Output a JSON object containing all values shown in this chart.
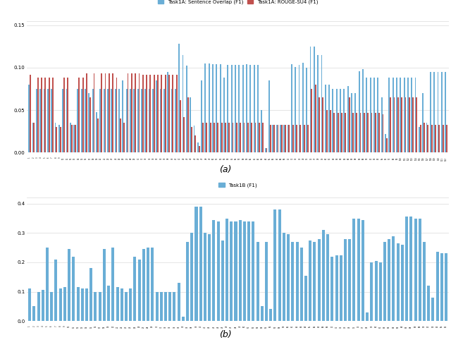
{
  "task1a_blue": [
    0.08,
    0.035,
    0.075,
    0.075,
    0.075,
    0.075,
    0.075,
    0.035,
    0.033,
    0.075,
    0.075,
    0.035,
    0.033,
    0.075,
    0.075,
    0.075,
    0.07,
    0.075,
    0.048,
    0.075,
    0.075,
    0.075,
    0.075,
    0.075,
    0.075,
    0.085,
    0.075,
    0.075,
    0.075,
    0.075,
    0.075,
    0.075,
    0.075,
    0.075,
    0.085,
    0.075,
    0.075,
    0.095,
    0.075,
    0.075,
    0.128,
    0.115,
    0.102,
    0.065,
    0.032,
    0.012,
    0.085,
    0.105,
    0.105,
    0.104,
    0.104,
    0.104,
    0.088,
    0.103,
    0.103,
    0.103,
    0.103,
    0.103,
    0.104,
    0.103,
    0.103,
    0.103,
    0.05,
    0.005,
    0.085,
    0.033,
    0.033,
    0.033,
    0.033,
    0.033,
    0.104,
    0.101,
    0.103,
    0.106,
    0.1,
    0.125,
    0.125,
    0.115,
    0.115,
    0.08,
    0.08,
    0.075,
    0.075,
    0.075,
    0.075,
    0.078,
    0.07,
    0.07,
    0.096,
    0.098,
    0.088,
    0.088,
    0.088,
    0.088,
    0.065,
    0.022,
    0.088,
    0.088,
    0.088,
    0.088,
    0.088,
    0.088,
    0.088,
    0.088,
    0.03,
    0.07,
    0.035,
    0.095,
    0.095,
    0.095,
    0.095,
    0.095
  ],
  "task1a_red": [
    0.092,
    0.035,
    0.088,
    0.088,
    0.088,
    0.088,
    0.088,
    0.03,
    0.03,
    0.088,
    0.088,
    0.033,
    0.033,
    0.088,
    0.088,
    0.093,
    0.065,
    0.093,
    0.04,
    0.093,
    0.093,
    0.093,
    0.093,
    0.088,
    0.04,
    0.035,
    0.093,
    0.093,
    0.093,
    0.093,
    0.092,
    0.092,
    0.092,
    0.092,
    0.092,
    0.092,
    0.092,
    0.092,
    0.092,
    0.092,
    0.062,
    0.042,
    0.065,
    0.03,
    0.02,
    0.008,
    0.035,
    0.035,
    0.035,
    0.035,
    0.035,
    0.035,
    0.035,
    0.035,
    0.035,
    0.035,
    0.035,
    0.035,
    0.035,
    0.035,
    0.035,
    0.035,
    0.035,
    0.005,
    0.033,
    0.033,
    0.033,
    0.033,
    0.033,
    0.033,
    0.033,
    0.033,
    0.033,
    0.033,
    0.033,
    0.075,
    0.08,
    0.065,
    0.065,
    0.05,
    0.05,
    0.047,
    0.047,
    0.047,
    0.047,
    0.065,
    0.047,
    0.047,
    0.047,
    0.047,
    0.047,
    0.047,
    0.047,
    0.047,
    0.045,
    0.017,
    0.065,
    0.065,
    0.065,
    0.065,
    0.065,
    0.065,
    0.065,
    0.065,
    0.033,
    0.035,
    0.033,
    0.033,
    0.033,
    0.033,
    0.033,
    0.033
  ],
  "task1b": [
    0.11,
    0.05,
    0.1,
    0.105,
    0.25,
    0.1,
    0.21,
    0.11,
    0.115,
    0.245,
    0.22,
    0.115,
    0.11,
    0.11,
    0.18,
    0.1,
    0.1,
    0.245,
    0.12,
    0.25,
    0.115,
    0.11,
    0.1,
    0.11,
    0.22,
    0.21,
    0.245,
    0.25,
    0.25,
    0.1,
    0.1,
    0.1,
    0.1,
    0.1,
    0.13,
    0.015,
    0.27,
    0.3,
    0.39,
    0.39,
    0.3,
    0.295,
    0.345,
    0.34,
    0.275,
    0.35,
    0.34,
    0.34,
    0.345,
    0.34,
    0.34,
    0.34,
    0.27,
    0.05,
    0.27,
    0.04,
    0.38,
    0.38,
    0.3,
    0.295,
    0.27,
    0.27,
    0.25,
    0.155,
    0.275,
    0.27,
    0.28,
    0.31,
    0.295,
    0.22,
    0.225,
    0.225,
    0.28,
    0.28,
    0.35,
    0.35,
    0.345,
    0.03,
    0.2,
    0.205,
    0.2,
    0.27,
    0.28,
    0.29,
    0.265,
    0.26,
    0.355,
    0.355,
    0.35,
    0.35,
    0.27,
    0.12,
    0.08,
    0.235,
    0.23,
    0.23
  ],
  "label1a_blue": "Task1A: Sentence Overlap (F1)",
  "label1a_red": "Task1A: ROUGE-SU4 (F1)",
  "label1b": "Task1B (F1)",
  "label_a": "(a)",
  "label_b": "(b)",
  "color_blue": "#6aaed6",
  "color_red": "#c0504d",
  "ylim_a": [
    0,
    0.155
  ],
  "ylim_b": [
    0,
    0.42
  ],
  "yticks_a": [
    0.0,
    0.05,
    0.1,
    0.15
  ],
  "yticks_b": [
    0.0,
    0.1,
    0.2,
    0.3,
    0.4
  ],
  "bg_color": "#ffffff",
  "grid_color": "#e0e0e0"
}
